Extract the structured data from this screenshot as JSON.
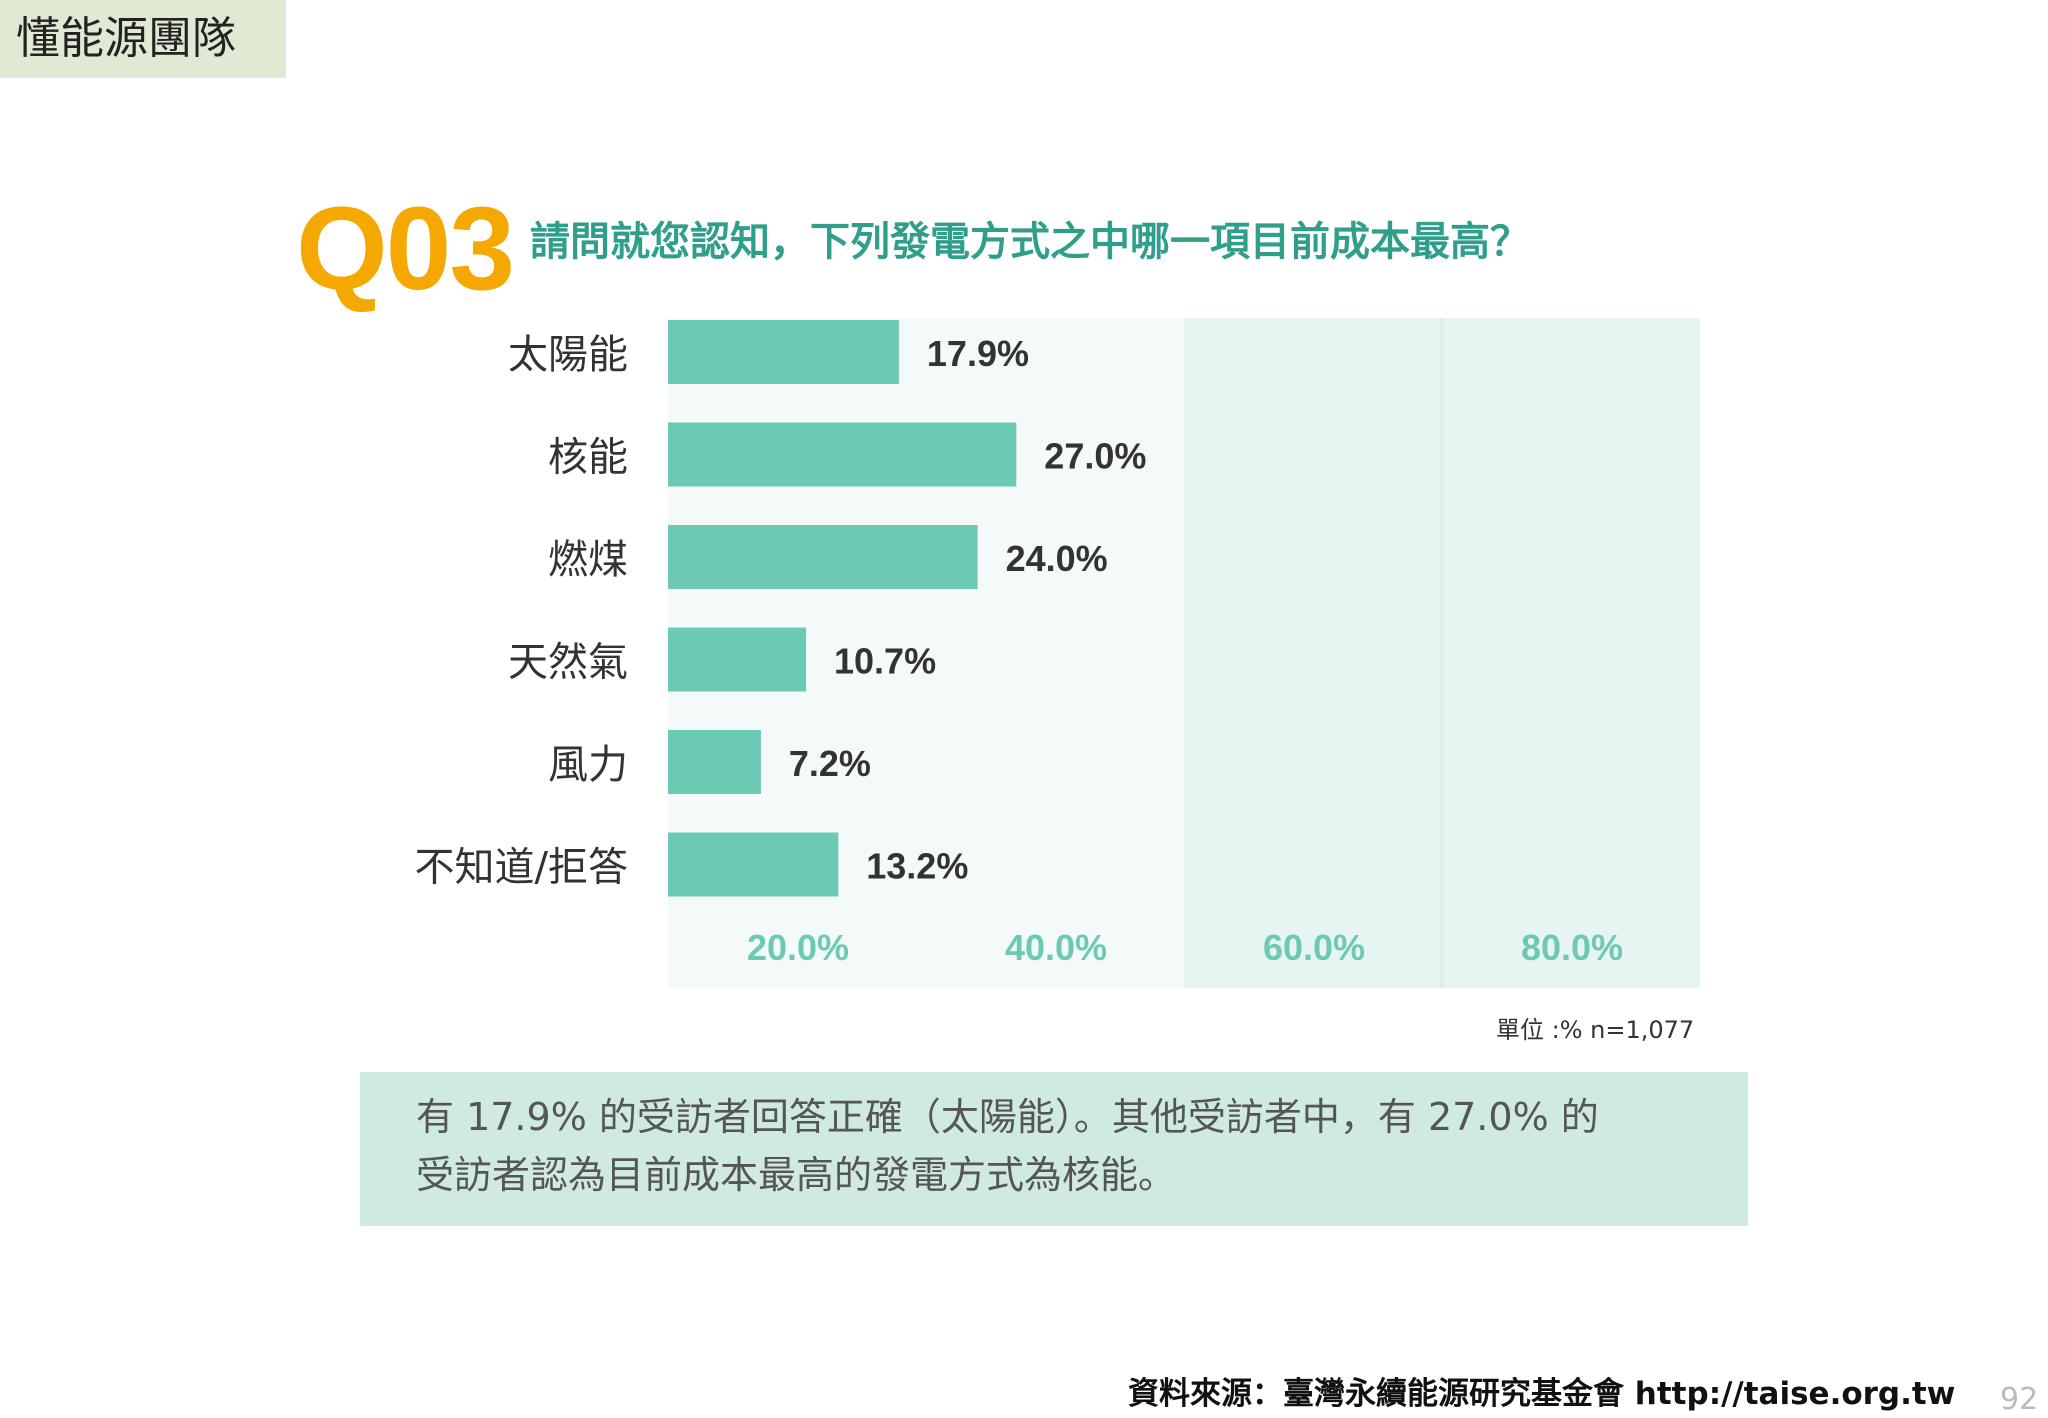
{
  "header": {
    "team": "懂能源團隊"
  },
  "question": {
    "number": "Q03",
    "text": "請問就您認知，下列發電方式之中哪一項目前成本最高？"
  },
  "chart_data": {
    "type": "bar",
    "orientation": "horizontal",
    "categories": [
      "太陽能",
      "核能",
      "燃煤",
      "天然氣",
      "風力",
      "不知道/拒答"
    ],
    "values": [
      17.9,
      27.0,
      24.0,
      10.7,
      7.2,
      13.2
    ],
    "value_labels": [
      "17.9%",
      "27.0%",
      "24.0%",
      "10.7%",
      "7.2%",
      "13.2%"
    ],
    "xlim": [
      0,
      80
    ],
    "x_ticks": [
      20,
      40,
      60,
      80
    ],
    "x_tick_labels": [
      "20.0%",
      "40.0%",
      "60.0%",
      "80.0%"
    ],
    "title": "",
    "xlabel": "",
    "ylabel": "",
    "grid": false,
    "colors": {
      "bar": "#6cc9b4",
      "tick_text": "#6cc9b4",
      "label_text": "#333333",
      "background_band_light": "#f3faf9",
      "background_band_dark": "#e6f4f2"
    }
  },
  "unit_note": "單位 :% n=1,077",
  "summary": {
    "line1": "有 17.9% 的受訪者回答正確（太陽能）。其他受訪者中，有 27.0% 的",
    "line2": "受訪者認為目前成本最高的發電方式為核能。"
  },
  "source": "資料來源：臺灣永續能源研究基金會 http://taise.org.tw",
  "page_number": "92"
}
